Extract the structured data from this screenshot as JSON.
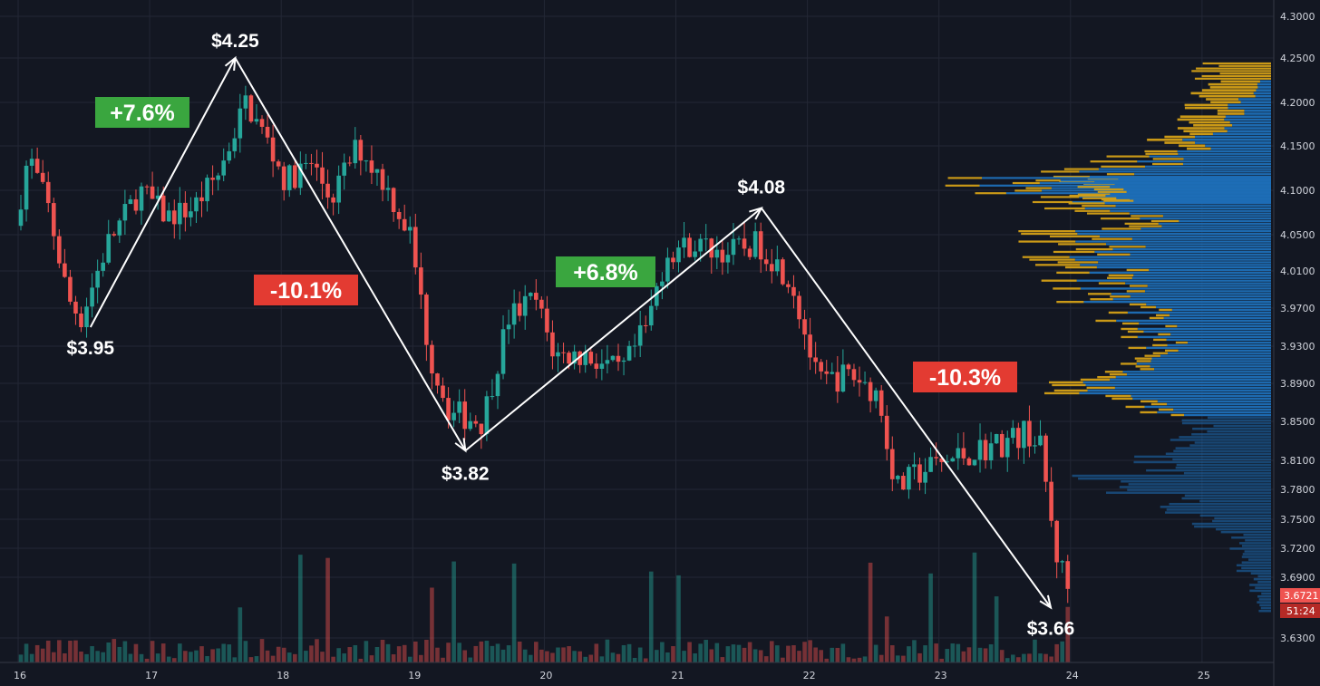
{
  "chart_data": {
    "type": "candlestick",
    "x_tick_labels": [
      "16",
      "17",
      "18",
      "19",
      "20",
      "21",
      "22",
      "23",
      "24",
      "25"
    ],
    "y_tick_labels": [
      "4.3000",
      "4.2500",
      "4.2000",
      "4.1500",
      "4.1000",
      "4.0500",
      "4.0100",
      "3.9700",
      "3.9300",
      "3.8900",
      "3.8500",
      "3.8100",
      "3.7800",
      "3.7500",
      "3.7200",
      "3.6900",
      "3.6300"
    ],
    "ylim": [
      3.6,
      4.32
    ],
    "grid": true,
    "current_price": "3.6721",
    "countdown": "51:24",
    "colors": {
      "background": "#131722",
      "up": "#26a69a",
      "down": "#ef5350",
      "profile_yellow": "#d4a017",
      "profile_blue": "#1e6fb8",
      "gain_badge": "#3aa63f",
      "loss_badge": "#e33b32"
    },
    "swing_points": [
      {
        "day": 16.55,
        "price": 3.95,
        "label": "$3.95"
      },
      {
        "day": 17.65,
        "price": 4.25,
        "label": "$4.25"
      },
      {
        "day": 19.4,
        "price": 3.82,
        "label": "$3.82"
      },
      {
        "day": 21.65,
        "price": 4.08,
        "label": "$4.08"
      },
      {
        "day": 23.85,
        "price": 3.66,
        "label": "$3.66"
      }
    ],
    "moves": [
      {
        "label": "+7.6%",
        "kind": "gain"
      },
      {
        "label": "-10.1%",
        "kind": "loss"
      },
      {
        "label": "+6.8%",
        "kind": "gain"
      },
      {
        "label": "-10.3%",
        "kind": "loss"
      }
    ],
    "waypoints": [
      [
        16.0,
        4.06
      ],
      [
        16.1,
        4.14
      ],
      [
        16.25,
        4.08
      ],
      [
        16.4,
        3.98
      ],
      [
        16.5,
        3.96
      ],
      [
        16.7,
        4.04
      ],
      [
        16.95,
        4.1
      ],
      [
        17.15,
        4.07
      ],
      [
        17.35,
        4.08
      ],
      [
        17.55,
        4.12
      ],
      [
        17.75,
        4.2
      ],
      [
        17.9,
        4.16
      ],
      [
        18.05,
        4.11
      ],
      [
        18.25,
        4.13
      ],
      [
        18.4,
        4.09
      ],
      [
        18.6,
        4.15
      ],
      [
        18.8,
        4.11
      ],
      [
        19.0,
        4.05
      ],
      [
        19.15,
        3.92
      ],
      [
        19.3,
        3.86
      ],
      [
        19.55,
        3.85
      ],
      [
        19.75,
        3.96
      ],
      [
        19.95,
        3.98
      ],
      [
        20.1,
        3.92
      ],
      [
        20.35,
        3.92
      ],
      [
        20.6,
        3.9
      ],
      [
        20.8,
        3.95
      ],
      [
        20.95,
        4.03
      ],
      [
        21.15,
        4.04
      ],
      [
        21.4,
        4.03
      ],
      [
        21.65,
        4.04
      ],
      [
        21.9,
        4.0
      ],
      [
        22.1,
        3.89
      ],
      [
        22.35,
        3.9
      ],
      [
        22.55,
        3.88
      ],
      [
        22.7,
        3.78
      ],
      [
        22.9,
        3.8
      ],
      [
        23.1,
        3.81
      ],
      [
        23.3,
        3.82
      ],
      [
        23.55,
        3.83
      ],
      [
        23.7,
        3.84
      ],
      [
        23.8,
        3.82
      ],
      [
        23.9,
        3.72
      ],
      [
        24.0,
        3.68
      ]
    ],
    "volume_profile_buckets": [
      [
        4.235,
        0.22,
        0.0
      ],
      [
        4.215,
        0.18,
        0.05
      ],
      [
        4.195,
        0.12,
        0.12
      ],
      [
        4.175,
        0.14,
        0.14
      ],
      [
        4.155,
        0.1,
        0.25
      ],
      [
        4.135,
        0.14,
        0.4
      ],
      [
        4.115,
        0.12,
        0.6
      ],
      [
        4.105,
        0.1,
        0.85
      ],
      [
        4.095,
        0.13,
        0.65
      ],
      [
        4.085,
        0.12,
        0.55
      ],
      [
        4.065,
        0.12,
        0.4
      ],
      [
        4.045,
        0.16,
        0.55
      ],
      [
        4.025,
        0.14,
        0.6
      ],
      [
        4.005,
        0.1,
        0.55
      ],
      [
        3.985,
        0.08,
        0.55
      ],
      [
        3.965,
        0.06,
        0.45
      ],
      [
        3.945,
        0.05,
        0.4
      ],
      [
        3.925,
        0.05,
        0.35
      ],
      [
        3.905,
        0.06,
        0.5
      ],
      [
        3.885,
        0.1,
        0.55
      ],
      [
        3.865,
        0.06,
        0.4
      ],
      [
        3.845,
        0.0,
        0.25
      ],
      [
        3.825,
        0.0,
        0.3
      ],
      [
        3.805,
        0.0,
        0.38
      ],
      [
        3.785,
        0.0,
        0.55
      ],
      [
        3.765,
        0.0,
        0.32
      ],
      [
        3.745,
        0.0,
        0.22
      ],
      [
        3.725,
        0.0,
        0.12
      ],
      [
        3.705,
        0.0,
        0.1
      ],
      [
        3.685,
        0.0,
        0.06
      ],
      [
        3.665,
        0.0,
        0.04
      ]
    ]
  }
}
